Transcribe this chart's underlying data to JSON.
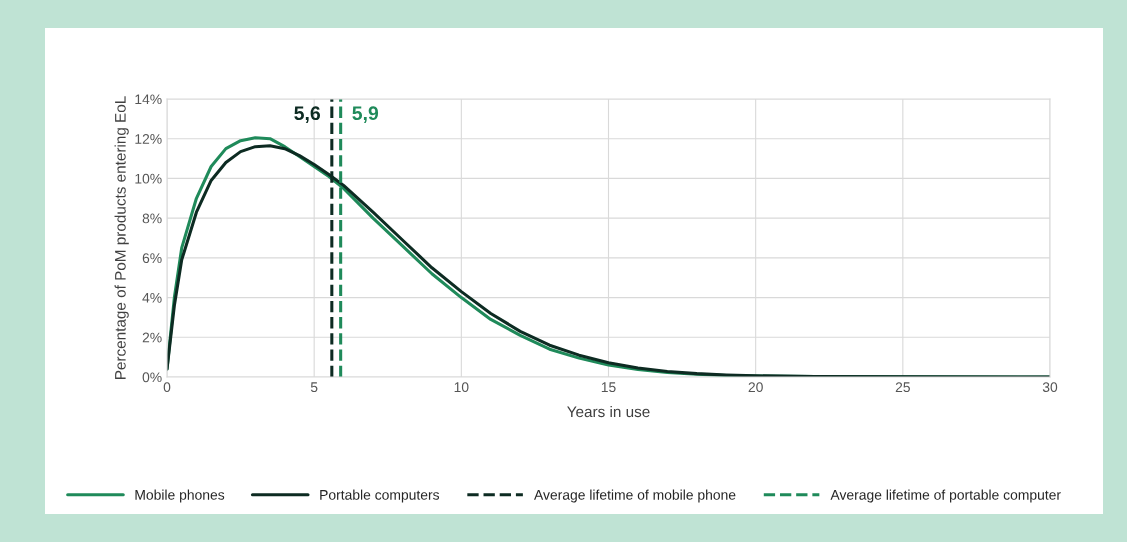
{
  "chart_data": {
    "type": "line",
    "xlabel": "Years in use",
    "ylabel": "Percentage of PoM products entering EoL",
    "series": [
      {
        "name": "Mobile phones",
        "color": "#1f8a5a",
        "x": [
          0,
          0.25,
          0.5,
          1,
          1.5,
          2,
          2.5,
          3,
          3.5,
          4,
          4.5,
          5,
          5.5,
          6,
          7,
          8,
          9,
          10,
          11,
          12,
          13,
          14,
          15,
          16,
          17,
          18,
          19,
          20,
          22,
          25,
          30
        ],
        "values": [
          0.4,
          4,
          6.5,
          9.0,
          10.6,
          11.5,
          11.9,
          12.05,
          12.0,
          11.6,
          11.1,
          10.6,
          10.1,
          9.5,
          8.0,
          6.6,
          5.2,
          4.0,
          2.9,
          2.1,
          1.4,
          0.95,
          0.6,
          0.38,
          0.23,
          0.14,
          0.08,
          0.05,
          0.02,
          0.005,
          0
        ]
      },
      {
        "name": "Portable computers",
        "color": "#0d2b22",
        "x": [
          0,
          0.25,
          0.5,
          1,
          1.5,
          2,
          2.5,
          3,
          3.5,
          4,
          4.5,
          5,
          5.5,
          6,
          7,
          8,
          9,
          10,
          11,
          12,
          13,
          14,
          15,
          16,
          17,
          18,
          19,
          20,
          22,
          25,
          30
        ],
        "values": [
          0.4,
          3.6,
          5.9,
          8.3,
          9.9,
          10.8,
          11.35,
          11.6,
          11.65,
          11.5,
          11.15,
          10.7,
          10.2,
          9.65,
          8.3,
          6.9,
          5.5,
          4.3,
          3.2,
          2.3,
          1.6,
          1.1,
          0.72,
          0.45,
          0.28,
          0.17,
          0.1,
          0.06,
          0.02,
          0.005,
          0
        ]
      }
    ],
    "ref_lines": [
      {
        "axis": "x",
        "value": 5.6,
        "label": "Average lifetime of mobile phone",
        "color": "#0d2b22",
        "line_style": "dashed"
      },
      {
        "axis": "x",
        "value": 5.9,
        "label": "Average lifetime of portable computer",
        "color": "#1f8a5a",
        "line_style": "dashed"
      }
    ],
    "annotations": [
      {
        "text": "5,6",
        "x": 5.6,
        "y": 13.2
      },
      {
        "text": "5,9",
        "x": 5.9,
        "y": 13.2
      }
    ],
    "xlim": [
      0,
      30
    ],
    "xticks": [
      0,
      5,
      10,
      15,
      20,
      25,
      30
    ],
    "ylim": [
      0,
      14
    ],
    "yticks": [
      {
        "value": 0,
        "label": "0%"
      },
      {
        "value": 2,
        "label": "2%"
      },
      {
        "value": 4,
        "label": "4%"
      },
      {
        "value": 6,
        "label": "6%"
      },
      {
        "value": 8,
        "label": "8%"
      },
      {
        "value": 10,
        "label": "10%"
      },
      {
        "value": 12,
        "label": "12%"
      },
      {
        "value": 14,
        "label": "14%"
      }
    ],
    "grid": true,
    "legend": "bottom",
    "line_style": "solid"
  }
}
